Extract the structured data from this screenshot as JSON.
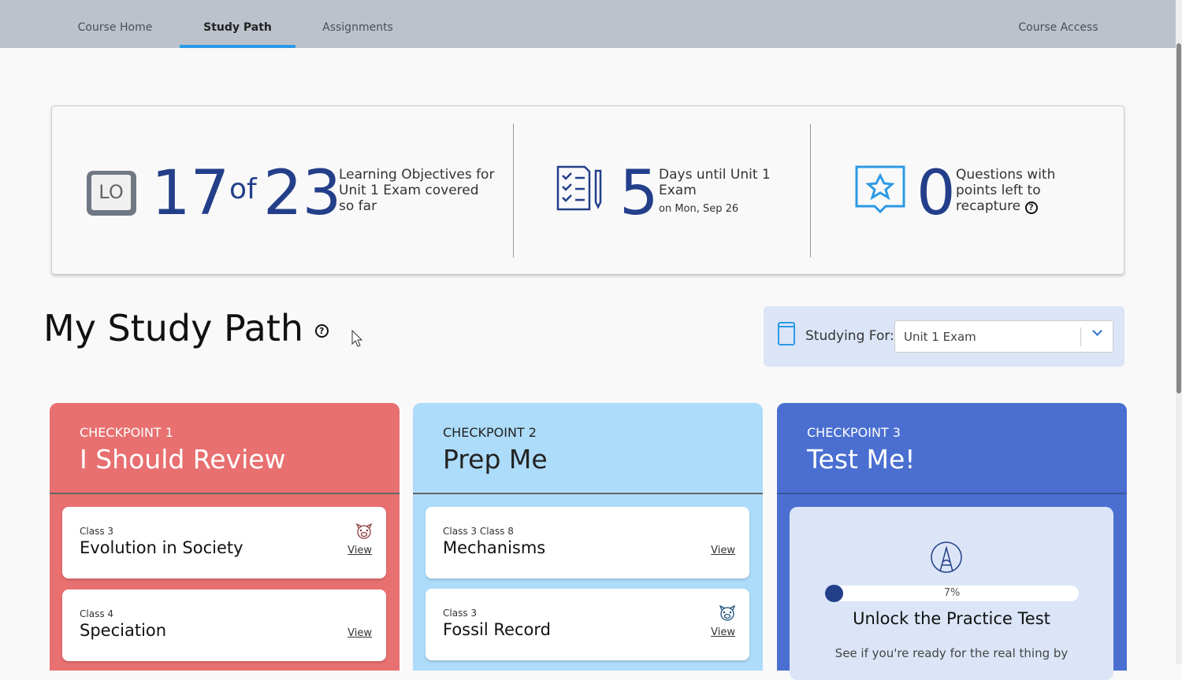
{
  "nav": {
    "tabs": [
      "Course Home",
      "Study Path",
      "Assignments"
    ],
    "active": "Study Path",
    "right": "Course Access"
  },
  "stats": {
    "objectives": {
      "icon": "lo-icon",
      "icon_text": "LO",
      "covered": "17",
      "of": "of",
      "total": "23",
      "desc": "Learning Objectives for Unit 1 Exam covered so far"
    },
    "days": {
      "icon": "checklist-icon",
      "value": "5",
      "desc": "Days until Unit 1 Exam",
      "date": "on Mon, Sep 26"
    },
    "questions": {
      "icon": "star-message-icon",
      "value": "0",
      "desc": "Questions with points left to recapture"
    }
  },
  "study_path": {
    "title": "My Study Path",
    "studying_for_label": "Studying For:",
    "studying_for_value": "Unit 1 Exam"
  },
  "columns": [
    {
      "label": "CHECKPOINT 1",
      "title": "I Should Review",
      "color": "#e87070",
      "cards": [
        {
          "classes": "Class 3",
          "name": "Evolution in Society",
          "view": "View",
          "pig": true
        },
        {
          "classes": "Class 4",
          "name": "Speciation",
          "view": "View",
          "pig": false
        }
      ]
    },
    {
      "label": "CHECKPOINT 2",
      "title": "Prep Me",
      "color": "#addcfa",
      "cards": [
        {
          "classes": "Class 3 Class 8",
          "name": "Mechanisms",
          "view": "View",
          "pig": false
        },
        {
          "classes": "Class 3",
          "name": "Fossil Record",
          "view": "View",
          "pig": true
        }
      ]
    },
    {
      "label": "CHECKPOINT 3",
      "title": "Test Me!",
      "color": "#4a6fd1"
    }
  ],
  "practice": {
    "progress_percent": 7,
    "progress_label": "7%",
    "title": "Unlock the Practice Test",
    "desc": "See if you're ready for the real thing by"
  }
}
